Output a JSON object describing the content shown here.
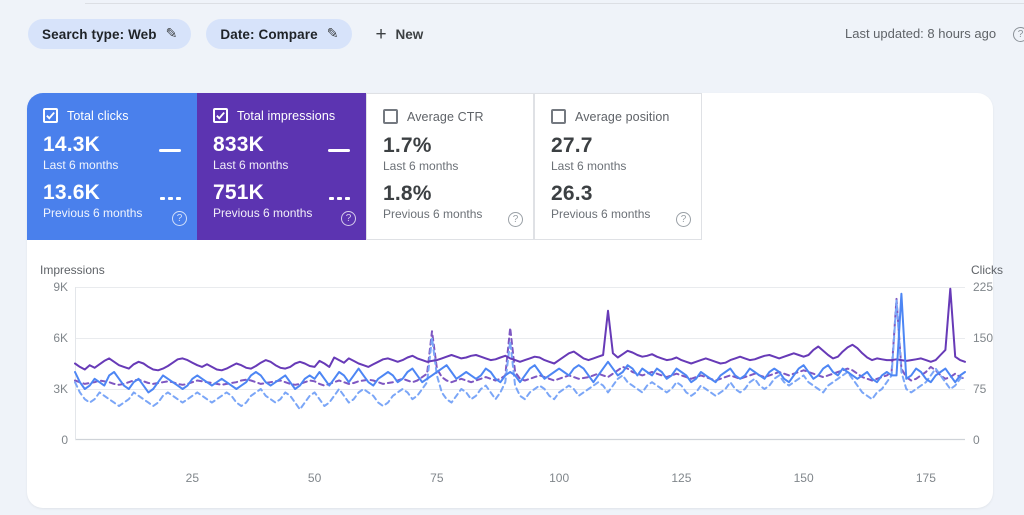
{
  "toolbar": {
    "chips": [
      {
        "label": "Search type: Web"
      },
      {
        "label": "Date: Compare"
      }
    ],
    "new_button": "New",
    "last_updated": "Last updated: 8 hours ago"
  },
  "icons": {
    "edit": "✎",
    "plus": "+",
    "help": "?",
    "check": "✓"
  },
  "cards": [
    {
      "label": "Total clicks",
      "current": "14.3K",
      "current_caption": "Last 6 months",
      "previous": "13.6K",
      "previous_caption": "Previous 6 months",
      "selected": true,
      "background": "#4a80ec"
    },
    {
      "label": "Total impressions",
      "current": "833K",
      "current_caption": "Last 6 months",
      "previous": "751K",
      "previous_caption": "Previous 6 months",
      "selected": true,
      "background": "#5c34b1"
    },
    {
      "label": "Average CTR",
      "current": "1.7%",
      "current_caption": "Last 6 months",
      "previous": "1.8%",
      "previous_caption": "Previous 6 months",
      "selected": false,
      "background": "#ffffff"
    },
    {
      "label": "Average position",
      "current": "27.7",
      "current_caption": "Last 6 months",
      "previous": "26.3",
      "previous_caption": "Previous 6 months",
      "selected": false,
      "background": "#ffffff"
    }
  ],
  "chart_data": {
    "type": "line",
    "x_start": 1,
    "x_end": 183,
    "x_ticks": [
      25,
      50,
      75,
      100,
      125,
      150,
      175
    ],
    "grid": "horizontal",
    "left_axis": {
      "label": "Impressions",
      "ticks": [
        "9K",
        "6K",
        "3K",
        "0"
      ],
      "max": 9000,
      "min": 0
    },
    "right_axis": {
      "label": "Clicks",
      "ticks": [
        "225",
        "150",
        "75",
        "0"
      ],
      "max": 225,
      "min": 0
    },
    "series": [
      {
        "name": "Impressions - Previous 6 months",
        "axis": "left",
        "style": "dashed",
        "color": "#7e57c2",
        "values": [
          3500,
          3400,
          3300,
          3350,
          3400,
          3500,
          3450,
          3400,
          3300,
          3250,
          3300,
          3400,
          3500,
          3550,
          3450,
          3350,
          3300,
          3350,
          3400,
          3450,
          3400,
          3300,
          3250,
          3300,
          3400,
          3500,
          3450,
          3400,
          3350,
          3300,
          3250,
          3300,
          3350,
          3400,
          3500,
          3550,
          3500,
          3400,
          3300,
          3350,
          3400,
          3450,
          3500,
          3400,
          3300,
          3250,
          3300,
          3400,
          3500,
          3450,
          3300,
          3200,
          3300,
          3400,
          3500,
          3400,
          3300,
          3350,
          3450,
          3500,
          3550,
          3500,
          3400,
          3300,
          3350,
          3400,
          3500,
          3600,
          3500,
          3400,
          3500,
          3700,
          3900,
          6400,
          4200,
          3700,
          3500,
          3400,
          3500,
          3600,
          3500,
          3400,
          3500,
          3600,
          3700,
          3600,
          3500,
          3600,
          3800,
          6600,
          4000,
          3600,
          3500,
          3600,
          3700,
          3800,
          3700,
          3600,
          3500,
          3600,
          3700,
          3800,
          3700,
          3600,
          3650,
          3700,
          3800,
          3900,
          3800,
          3700,
          3900,
          4100,
          4300,
          4200,
          4000,
          3900,
          3800,
          3900,
          4000,
          3900,
          3800,
          3700,
          3800,
          3900,
          3800,
          3700,
          3600,
          3700,
          3800,
          3700,
          3600,
          3500,
          3600,
          3700,
          3800,
          3700,
          3600,
          3700,
          3800,
          3900,
          3800,
          3700,
          3800,
          3900,
          4000,
          3900,
          3800,
          3900,
          4000,
          4100,
          4000,
          3900,
          3800,
          3700,
          3800,
          3900,
          4000,
          4100,
          4200,
          4100,
          3900,
          3700,
          3600,
          3500,
          3600,
          3700,
          3800,
          4000,
          8300,
          4200,
          3700,
          3500,
          3600,
          3800,
          4000,
          4300,
          4100,
          3800,
          3600,
          3700,
          3900,
          3700,
          3600
        ]
      },
      {
        "name": "Clicks - Previous 6 months",
        "axis": "right",
        "style": "dashed",
        "color": "#7ba6f7",
        "values": [
          85,
          70,
          60,
          55,
          60,
          70,
          65,
          60,
          55,
          50,
          55,
          60,
          70,
          65,
          60,
          55,
          50,
          55,
          65,
          70,
          65,
          60,
          55,
          60,
          65,
          70,
          65,
          60,
          55,
          60,
          65,
          70,
          65,
          55,
          50,
          55,
          65,
          70,
          75,
          65,
          60,
          55,
          60,
          70,
          65,
          55,
          45,
          55,
          65,
          70,
          60,
          50,
          55,
          65,
          75,
          65,
          55,
          60,
          70,
          75,
          70,
          65,
          55,
          50,
          55,
          65,
          70,
          75,
          70,
          60,
          65,
          75,
          85,
          150,
          95,
          70,
          60,
          55,
          65,
          75,
          70,
          60,
          65,
          75,
          80,
          70,
          60,
          70,
          85,
          145,
          80,
          65,
          60,
          70,
          75,
          80,
          75,
          65,
          60,
          70,
          75,
          80,
          75,
          65,
          70,
          75,
          80,
          85,
          80,
          70,
          80,
          90,
          95,
          85,
          80,
          75,
          70,
          80,
          85,
          80,
          75,
          70,
          75,
          85,
          80,
          70,
          65,
          70,
          80,
          75,
          70,
          65,
          70,
          75,
          85,
          75,
          70,
          75,
          85,
          90,
          80,
          75,
          80,
          90,
          95,
          85,
          80,
          85,
          90,
          95,
          85,
          80,
          75,
          70,
          80,
          85,
          90,
          95,
          100,
          90,
          80,
          70,
          65,
          60,
          70,
          75,
          85,
          95,
          205,
          100,
          75,
          70,
          75,
          80,
          85,
          95,
          105,
          95,
          85,
          75,
          80,
          90,
          95
        ]
      },
      {
        "name": "Impressions - Last 6 months",
        "axis": "left",
        "style": "solid",
        "color": "#673ab7",
        "values": [
          4500,
          4300,
          4150,
          4400,
          4250,
          4450,
          4650,
          4800,
          4600,
          4400,
          4300,
          4200,
          4450,
          4600,
          4500,
          4300,
          4150,
          4100,
          4200,
          4350,
          4550,
          4750,
          4800,
          4700,
          4550,
          4400,
          4300,
          4450,
          4300,
          4150,
          4100,
          4200,
          4350,
          4500,
          4400,
          4250,
          4200,
          4350,
          4550,
          4700,
          4600,
          4400,
          4250,
          4200,
          4300,
          4500,
          4600,
          4500,
          4350,
          4300,
          4650,
          4500,
          4300,
          4850,
          4700,
          4550,
          4800,
          4650,
          4500,
          4400,
          4300,
          4450,
          4600,
          4750,
          4800,
          4700,
          4600,
          4700,
          4850,
          4950,
          4800,
          4700,
          4600,
          4650,
          4700,
          4800,
          4900,
          5000,
          4900,
          4800,
          4850,
          4950,
          5000,
          4900,
          4800,
          4700,
          4750,
          4850,
          4950,
          4800,
          4700,
          4600,
          4700,
          4800,
          4900,
          4850,
          4700,
          4600,
          4500,
          4700,
          4900,
          5100,
          5200,
          5000,
          4800,
          4700,
          4800,
          4900,
          5000,
          7600,
          5100,
          4850,
          5050,
          5250,
          5150,
          5000,
          4900,
          4950,
          5050,
          4900,
          4800,
          4700,
          4750,
          4850,
          4700,
          4600,
          4500,
          4600,
          4700,
          4800,
          4700,
          4600,
          4500,
          4550,
          4700,
          4800,
          4900,
          4800,
          4700,
          4750,
          4850,
          4950,
          5000,
          4900,
          4800,
          4900,
          5000,
          5100,
          5000,
          4900,
          5000,
          5300,
          5500,
          5250,
          5000,
          4800,
          4900,
          5200,
          5450,
          5600,
          5400,
          5100,
          4850,
          4700,
          4800,
          4750,
          4700,
          4700,
          4750,
          4700,
          4650,
          4700,
          4750,
          4800,
          4700,
          4600,
          4700,
          5000,
          5300,
          8900,
          4900,
          4700,
          4600
        ]
      },
      {
        "name": "Clicks - Last 6 months",
        "axis": "right",
        "style": "solid",
        "color": "#4d86f4",
        "values": [
          100,
          85,
          75,
          80,
          90,
          85,
          80,
          95,
          100,
          90,
          80,
          75,
          85,
          90,
          80,
          70,
          75,
          85,
          95,
          90,
          85,
          80,
          75,
          80,
          90,
          95,
          90,
          85,
          80,
          85,
          90,
          85,
          80,
          75,
          80,
          85,
          95,
          100,
          95,
          85,
          80,
          85,
          90,
          95,
          85,
          75,
          80,
          90,
          95,
          90,
          100,
          90,
          80,
          90,
          100,
          95,
          85,
          95,
          105,
          95,
          85,
          80,
          90,
          95,
          100,
          95,
          85,
          90,
          100,
          105,
          95,
          85,
          90,
          95,
          100,
          105,
          110,
          100,
          90,
          95,
          100,
          95,
          90,
          95,
          105,
          100,
          90,
          85,
          95,
          100,
          95,
          85,
          95,
          105,
          110,
          100,
          90,
          95,
          100,
          105,
          100,
          95,
          105,
          110,
          105,
          95,
          85,
          95,
          105,
          115,
          105,
          95,
          100,
          110,
          105,
          95,
          105,
          100,
          95,
          105,
          100,
          90,
          95,
          105,
          100,
          95,
          85,
          90,
          100,
          95,
          90,
          85,
          95,
          100,
          105,
          95,
          90,
          95,
          105,
          100,
          95,
          90,
          100,
          105,
          100,
          90,
          85,
          95,
          105,
          110,
          100,
          90,
          95,
          105,
          110,
          100,
          95,
          105,
          100,
          95,
          90,
          95,
          100,
          90,
          85,
          95,
          100,
          95,
          95,
          215,
          90,
          95,
          105,
          100,
          90,
          85,
          95,
          100,
          105,
          95,
          85,
          95,
          100
        ]
      }
    ]
  }
}
